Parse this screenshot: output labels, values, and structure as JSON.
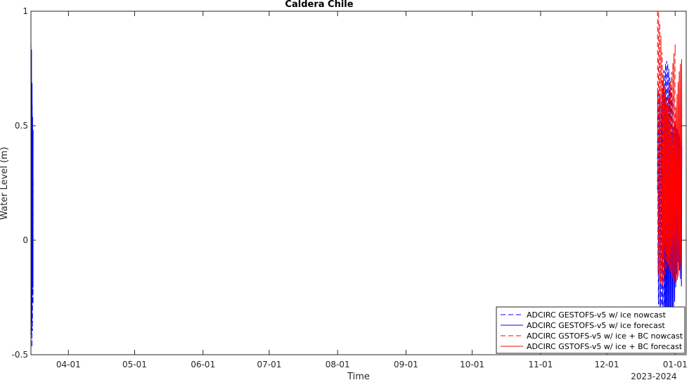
{
  "chart_data": {
    "type": "line",
    "title": "Caldera Chile",
    "xlabel": "Time",
    "ylabel": "Water Level (m)",
    "x_tick_labels": [
      "04-01",
      "05-01",
      "06-01",
      "07-01",
      "08-01",
      "09-01",
      "10-01",
      "11-01",
      "12-01",
      "01-01"
    ],
    "x_tick_dates": [
      "2023-04-01",
      "2023-05-01",
      "2023-06-01",
      "2023-07-01",
      "2023-08-01",
      "2023-09-01",
      "2023-10-01",
      "2023-11-01",
      "2023-12-01",
      "2024-01-01"
    ],
    "x_secondary_label": "2023-2024",
    "xlim": [
      "2023-03-15",
      "2024-01-06"
    ],
    "ylim": [
      -0.5,
      1
    ],
    "y_tick_labels": [
      "-0.5",
      "0",
      "0.5",
      "1"
    ],
    "y_ticks": [
      -0.5,
      0,
      0.5,
      1
    ],
    "grid": false,
    "legend_position": "bottom-right",
    "series": [
      {
        "name": "ADCIRC GESTOFS-v5 w/ ice nowcast",
        "color": "#0000ff",
        "style": "dashed",
        "segments": [
          {
            "start": "2023-03-15",
            "end": "2023-03-16",
            "amplitude": 0.52,
            "mean": 0.15,
            "cycles": 4
          },
          {
            "start": "2023-12-24",
            "end": "2023-12-31",
            "amplitude": 0.52,
            "mean": 0.22,
            "cycles": 14
          }
        ]
      },
      {
        "name": "ADCIRC GESTOFS-v5 w/ ice forecast",
        "color": "#0000ff",
        "style": "solid",
        "segments": [
          {
            "start": "2023-03-15",
            "end": "2023-03-16",
            "amplitude": 0.58,
            "mean": 0.2,
            "cycles": 4
          },
          {
            "start": "2023-12-27",
            "end": "2024-01-04",
            "amplitude": 0.48,
            "mean": 0.1,
            "cycles": 16
          }
        ]
      },
      {
        "name": "ADCIRC GSTOFS-v5 w/ ice + BC nowcast",
        "color": "#ff0000",
        "style": "dashed",
        "segments": [
          {
            "start": "2023-12-24",
            "end": "2024-01-01",
            "amplitude": 0.6,
            "mean": 0.32,
            "cycles": 15
          }
        ]
      },
      {
        "name": "ADCIRC GSTOFS-v5 w/ ice + BC forecast",
        "color": "#ff0000",
        "style": "solid",
        "segments": [
          {
            "start": "2023-12-26",
            "end": "2024-01-04",
            "amplitude": 0.5,
            "mean": 0.22,
            "cycles": 17
          }
        ]
      }
    ]
  }
}
